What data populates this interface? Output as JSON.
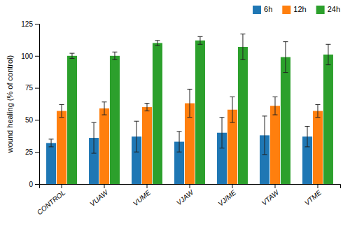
{
  "chart_data": {
    "type": "bar",
    "ylabel": "wound healing (% of control)",
    "categories": [
      "CONTROL",
      "VUAW",
      "VUME",
      "VJAW",
      "VJ/ME",
      "VTAW",
      "VTME"
    ],
    "series": [
      {
        "name": "6h",
        "values": [
          32,
          36,
          37,
          33,
          40,
          38,
          37
        ],
        "errors": [
          3,
          12,
          12,
          8,
          12,
          15,
          8
        ]
      },
      {
        "name": "12h",
        "values": [
          57,
          59,
          60,
          63,
          58,
          61,
          57
        ],
        "errors": [
          5,
          5,
          3,
          11,
          10,
          7,
          5
        ]
      },
      {
        "name": "24h",
        "values": [
          100,
          100,
          110,
          112,
          107,
          99,
          101
        ],
        "errors": [
          2,
          3,
          2,
          3,
          10,
          12,
          8
        ]
      }
    ],
    "ylim": [
      0,
      125
    ],
    "yticks": [
      0,
      25,
      50,
      75,
      100,
      125
    ],
    "grid": false,
    "legend": "top-right"
  }
}
